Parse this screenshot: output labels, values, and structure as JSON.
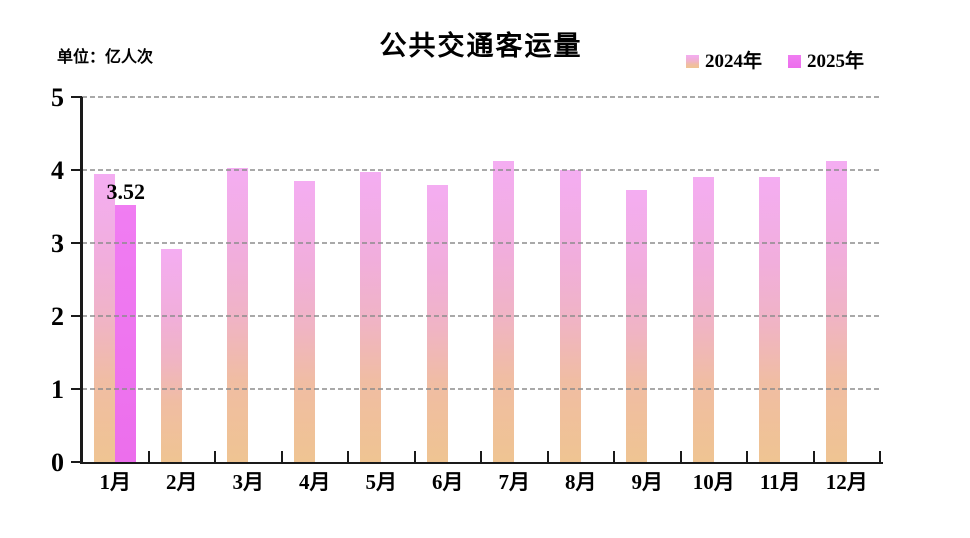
{
  "chart_data": {
    "type": "bar",
    "title": "公共交通客运量",
    "unit_label": "单位：亿人次",
    "categories": [
      "1月",
      "2月",
      "3月",
      "4月",
      "5月",
      "6月",
      "7月",
      "8月",
      "9月",
      "10月",
      "11月",
      "12月"
    ],
    "series": [
      {
        "name": "2024年",
        "values": [
          3.94,
          2.92,
          4.03,
          3.85,
          3.97,
          3.8,
          4.12,
          4.0,
          3.73,
          3.9,
          3.9,
          4.12
        ]
      },
      {
        "name": "2025年",
        "values": [
          3.52,
          null,
          null,
          null,
          null,
          null,
          null,
          null,
          null,
          null,
          null,
          null
        ]
      }
    ],
    "value_labels": [
      {
        "series_index": 1,
        "category_index": 0,
        "text": "3.52"
      }
    ],
    "ylim": [
      0,
      5
    ],
    "yticks": [
      "0",
      "1",
      "2",
      "3",
      "4",
      "5"
    ],
    "grid": "horizontal-dashed",
    "legend_position": "top-right",
    "colors": {
      "axis": "#1a1a1a",
      "gridline": "#8C8C8C",
      "text": "#000000",
      "bar_2024_gradient_stops": [
        "#F4ADF2 0%",
        "#F1AEDC 30%",
        "#F0B4C4 52%",
        "#F0BDA3 72%",
        "#EFC492 100%"
      ],
      "bar_2025_gradient_stops": [
        "#F07DF2 0%",
        "#EC6EEC 100%"
      ]
    }
  }
}
